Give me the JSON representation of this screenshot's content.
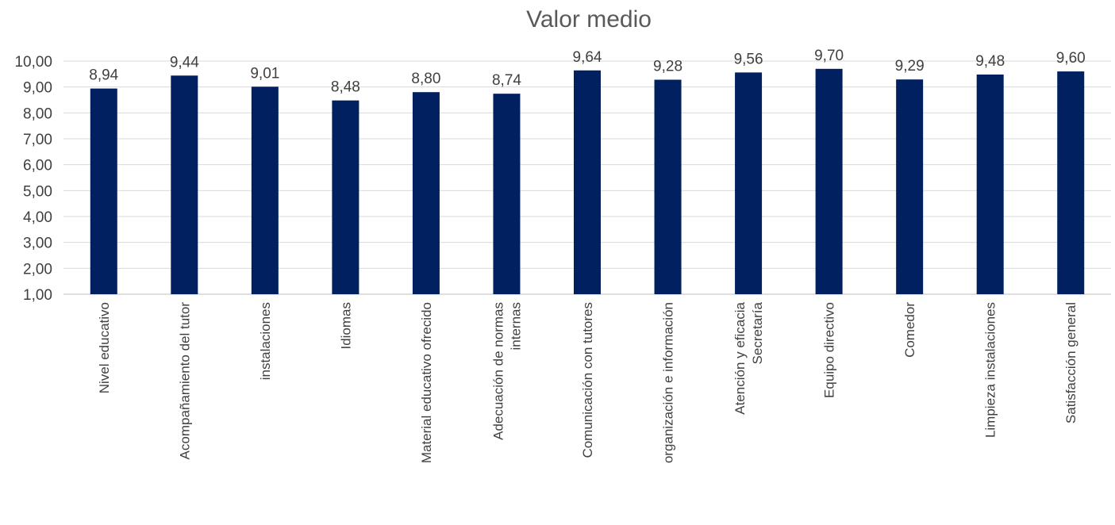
{
  "chart_data": {
    "type": "bar",
    "title": "Valor medio",
    "xlabel": "",
    "ylabel": "",
    "ylim": [
      1,
      10
    ],
    "yticks": [
      "1,00",
      "2,00",
      "3,00",
      "4,00",
      "5,00",
      "6,00",
      "7,00",
      "8,00",
      "9,00",
      "10,00"
    ],
    "grid": true,
    "legend": "none",
    "bar_color": "#002060",
    "categories": [
      [
        "Nivel educativo"
      ],
      [
        "Acompañamiento del tutor"
      ],
      [
        "instalaciones"
      ],
      [
        "Idiomas"
      ],
      [
        "Material educativo ofrecido"
      ],
      [
        "Adecuación de normas",
        "internas"
      ],
      [
        "Comunicación con tutores"
      ],
      [
        "organización e información"
      ],
      [
        "Atención y eficacia",
        "Secretaría"
      ],
      [
        "Equipo directivo"
      ],
      [
        "Comedor"
      ],
      [
        "Limpieza instalaciones"
      ],
      [
        "Satisfacción general"
      ]
    ],
    "values": [
      8.94,
      9.44,
      9.01,
      8.48,
      8.8,
      8.74,
      9.64,
      9.28,
      9.56,
      9.7,
      9.29,
      9.48,
      9.6
    ],
    "data_labels": [
      "8,94",
      "9,44",
      "9,01",
      "8,48",
      "8,80",
      "8,74",
      "9,64",
      "9,28",
      "9,56",
      "9,70",
      "9,29",
      "9,48",
      "9,60"
    ]
  }
}
